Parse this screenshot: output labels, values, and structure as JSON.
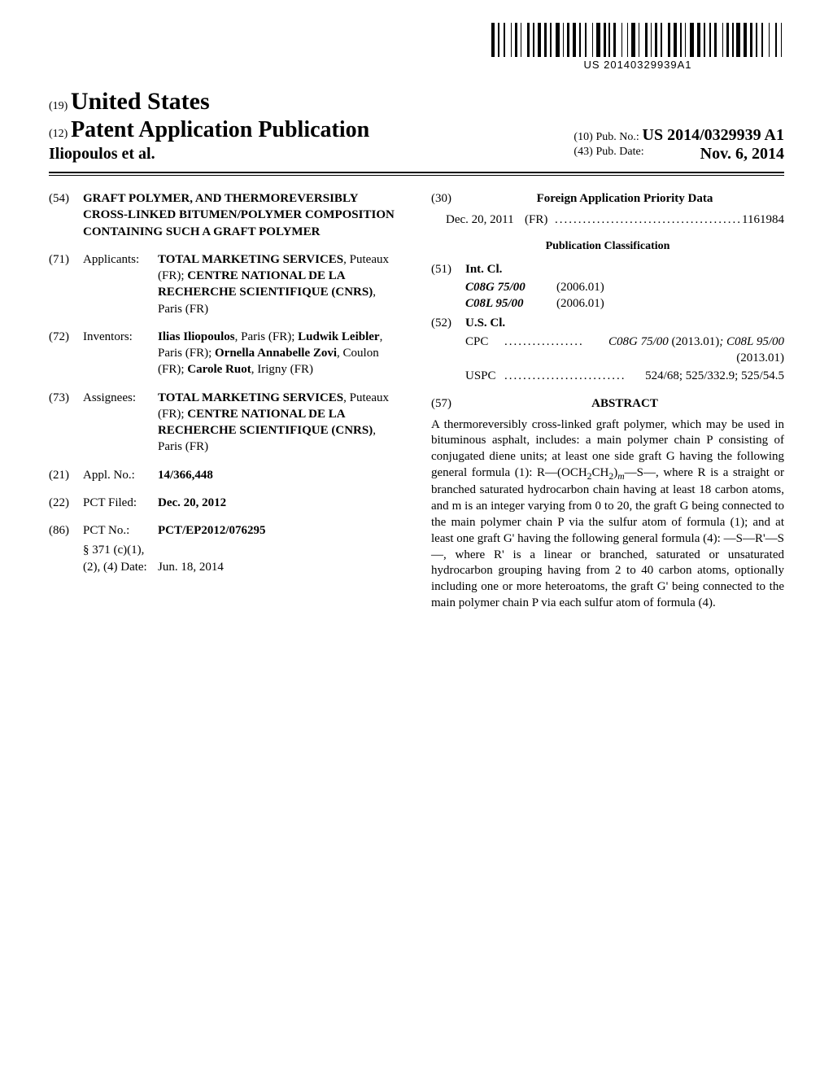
{
  "barcode_number": "US 20140329939A1",
  "header": {
    "tag19": "(19)",
    "country": "United States",
    "tag12": "(12)",
    "pub_title": "Patent Application Publication",
    "inventor_line": "Iliopoulos et al.",
    "tag10": "(10)",
    "pubno_label": "Pub. No.:",
    "pubno_value": "US 2014/0329939 A1",
    "tag43": "(43)",
    "pubdate_label": "Pub. Date:",
    "pubdate_value": "Nov. 6, 2014"
  },
  "left": {
    "f54": {
      "num": "(54)",
      "title": "GRAFT POLYMER, AND THERMOREVERSIBLY CROSS-LINKED BITUMEN/POLYMER COMPOSITION CONTAINING SUCH A GRAFT POLYMER"
    },
    "f71": {
      "num": "(71)",
      "label": "Applicants:",
      "value_html": "<span class=\"b\">TOTAL MARKETING SERVICES</span>, Puteaux (FR); <span class=\"b\">CENTRE NATIONAL DE LA RECHERCHE SCIENTIFIQUE (CNRS)</span>, Paris (FR)"
    },
    "f72": {
      "num": "(72)",
      "label": "Inventors:",
      "value_html": "<span class=\"b\">Ilias Iliopoulos</span>, Paris (FR); <span class=\"b\">Ludwik Leibler</span>, Paris (FR); <span class=\"b\">Ornella Annabelle Zovi</span>, Coulon (FR); <span class=\"b\">Carole Ruot</span>, Irigny (FR)"
    },
    "f73": {
      "num": "(73)",
      "label": "Assignees:",
      "value_html": "<span class=\"b\">TOTAL MARKETING SERVICES</span>, Puteaux (FR); <span class=\"b\">CENTRE NATIONAL DE LA RECHERCHE SCIENTIFIQUE (CNRS)</span>, Paris (FR)"
    },
    "f21": {
      "num": "(21)",
      "label": "Appl. No.:",
      "value": "14/366,448"
    },
    "f22": {
      "num": "(22)",
      "label": "PCT Filed:",
      "value": "Dec. 20, 2012"
    },
    "f86": {
      "num": "(86)",
      "label": "PCT No.:",
      "value": "PCT/EP2012/076295",
      "sub1": "§ 371 (c)(1),",
      "sub2_label": "(2), (4) Date:",
      "sub2_value": "Jun. 18, 2014"
    }
  },
  "right": {
    "f30": {
      "num": "(30)",
      "title": "Foreign Application Priority Data",
      "row_date": "Dec. 20, 2011",
      "row_cc": "(FR)",
      "row_dots": "........................................",
      "row_num": "1161984"
    },
    "pubclass_title": "Publication Classification",
    "f51": {
      "num": "(51)",
      "label": "Int. Cl.",
      "rows": [
        {
          "code": "C08G 75/00",
          "ver": "(2006.01)"
        },
        {
          "code": "C08L 95/00",
          "ver": "(2006.01)"
        }
      ]
    },
    "f52": {
      "num": "(52)",
      "label": "U.S. Cl.",
      "cpc_label": "CPC",
      "cpc_dots": ".................",
      "cpc_value": "C08G 75/00 (2013.01); C08L 95/00 (2013.01)",
      "uspc_label": "USPC",
      "uspc_dots": "..........................",
      "uspc_value": "524/68; 525/332.9; 525/54.5"
    },
    "f57": {
      "num": "(57)",
      "title": "ABSTRACT",
      "body_html": "A thermoreversibly cross-linked graft polymer, which may be used in bituminous asphalt, includes: a main polymer chain P consisting of conjugated diene units; at least one side graft G having the following general formula (1): R—(OCH<span class=\"sub\">2</span>CH<span class=\"sub\">2</span>)<span class=\"sub ital\">m</span>—S—, where R is a straight or branched saturated hydrocarbon chain having at least 18 carbon atoms, and m is an integer varying from 0 to 20, the graft G being connected to the main polymer chain P via the sulfur atom of formula (1); and at least one graft G' having the following general formula (4): —S—R'—S—, where R' is a linear or branched, saturated or unsaturated hydrocarbon grouping having from 2 to 40 carbon atoms, optionally including one or more heteroatoms, the graft G' being connected to the main polymer chain P via each sulfur atom of formula (4)."
    }
  }
}
